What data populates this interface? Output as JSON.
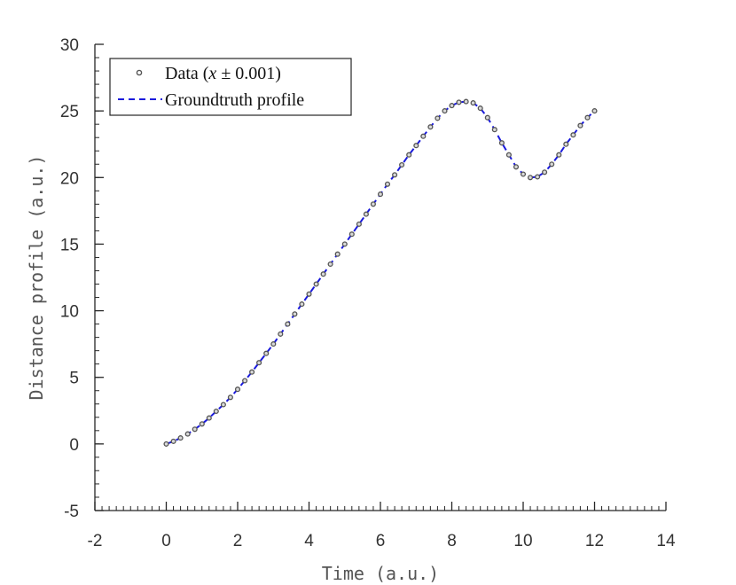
{
  "chart_data": {
    "type": "scatter",
    "title": "",
    "xlabel": "Time (a.u.)",
    "ylabel": "Distance profile (a.u.)",
    "xlim": [
      -2,
      14
    ],
    "ylim": [
      -5,
      30
    ],
    "xticks": [
      "-2",
      "0",
      "2",
      "4",
      "6",
      "8",
      "10",
      "12",
      "14"
    ],
    "yticks": [
      "-5",
      "0",
      "5",
      "10",
      "15",
      "20",
      "25",
      "30"
    ],
    "grid": false,
    "legend_position": "top-left",
    "series": [
      {
        "name": "Data (x ± 0.001)",
        "legend_prefix": "Data (",
        "legend_var": "x",
        "legend_suffix": " ± 0.001)",
        "kind": "markers",
        "color": "#555555",
        "x": [
          0.0,
          0.2,
          0.4,
          0.6,
          0.8,
          1.0,
          1.2,
          1.4,
          1.6,
          1.8,
          2.0,
          2.2,
          2.4,
          2.6,
          2.8,
          3.0,
          3.2,
          3.4,
          3.6,
          3.8,
          4.0,
          4.2,
          4.4,
          4.6,
          4.8,
          5.0,
          5.2,
          5.4,
          5.6,
          5.8,
          6.0,
          6.2,
          6.4,
          6.6,
          6.8,
          7.0,
          7.2,
          7.4,
          7.6,
          7.8,
          8.0,
          8.2,
          8.4,
          8.6,
          8.8,
          9.0,
          9.2,
          9.4,
          9.6,
          9.8,
          10.0,
          10.2,
          10.4,
          10.6,
          10.8,
          11.0,
          11.2,
          11.4,
          11.6,
          11.8,
          12.0
        ],
        "y": [
          0.0,
          0.2,
          0.45,
          0.75,
          1.1,
          1.5,
          1.95,
          2.45,
          2.95,
          3.5,
          4.1,
          4.75,
          5.4,
          6.1,
          6.8,
          7.5,
          8.25,
          9.0,
          9.75,
          10.5,
          11.25,
          12.0,
          12.75,
          13.5,
          14.25,
          15.0,
          15.75,
          16.5,
          17.25,
          18.0,
          18.75,
          19.5,
          20.2,
          20.95,
          21.7,
          22.4,
          23.1,
          23.8,
          24.45,
          25.0,
          25.4,
          25.65,
          25.7,
          25.6,
          25.2,
          24.5,
          23.6,
          22.6,
          21.7,
          20.8,
          20.25,
          20.0,
          20.05,
          20.4,
          21.0,
          21.7,
          22.5,
          23.2,
          23.9,
          24.5,
          25.0
        ]
      },
      {
        "name": "Groundtruth profile",
        "kind": "dashed-line",
        "color": "#1a1adc",
        "x": [
          0.0,
          0.2,
          0.4,
          0.6,
          0.8,
          1.0,
          1.2,
          1.4,
          1.6,
          1.8,
          2.0,
          2.2,
          2.4,
          2.6,
          2.8,
          3.0,
          3.2,
          3.4,
          3.6,
          3.8,
          4.0,
          4.2,
          4.4,
          4.6,
          4.8,
          5.0,
          5.2,
          5.4,
          5.6,
          5.8,
          6.0,
          6.2,
          6.4,
          6.6,
          6.8,
          7.0,
          7.2,
          7.4,
          7.6,
          7.8,
          8.0,
          8.2,
          8.4,
          8.6,
          8.8,
          9.0,
          9.2,
          9.4,
          9.6,
          9.8,
          10.0,
          10.2,
          10.4,
          10.6,
          10.8,
          11.0,
          11.2,
          11.4,
          11.6,
          11.8,
          12.0
        ],
        "y": [
          0.0,
          0.2,
          0.45,
          0.75,
          1.1,
          1.5,
          1.95,
          2.45,
          2.95,
          3.5,
          4.1,
          4.75,
          5.4,
          6.1,
          6.8,
          7.5,
          8.25,
          9.0,
          9.75,
          10.5,
          11.25,
          12.0,
          12.75,
          13.5,
          14.25,
          15.0,
          15.75,
          16.5,
          17.25,
          18.0,
          18.75,
          19.5,
          20.2,
          20.95,
          21.7,
          22.4,
          23.1,
          23.8,
          24.45,
          25.0,
          25.4,
          25.65,
          25.7,
          25.6,
          25.2,
          24.5,
          23.6,
          22.6,
          21.7,
          20.8,
          20.25,
          20.0,
          20.05,
          20.4,
          21.0,
          21.7,
          22.5,
          23.2,
          23.9,
          24.5,
          25.0
        ]
      }
    ]
  }
}
